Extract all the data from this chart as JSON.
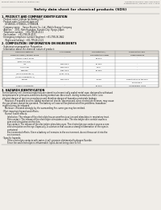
{
  "bg_color": "#f0ede8",
  "header_top_left": "Product Name: Lithium Ion Battery Cell",
  "header_top_right": "Substance Number: SBN-048-00019\nEstablishment / Revision: Dec.7.2015",
  "title": "Safety data sheet for chemical products (SDS)",
  "section1_title": "1. PRODUCT AND COMPANY IDENTIFICATION",
  "section1_lines": [
    "· Product name: Lithium Ion Battery Cell",
    "· Product code: Cylindrical-type cell",
    "    GY18650U, GY18650L, GY18650A",
    "· Company name:    Sanyo Electric Co., Ltd., Mobile Energy Company",
    "· Address:    2001, Kamimunakan, Sumoto-City, Hyogo, Japan",
    "· Telephone number:    +81-799-26-4111",
    "· Fax number:   +81-799-26-4121",
    "· Emergency telephone number (daytime): +81-799-26-2662",
    "    (Night and holiday): +81-799-26-2121"
  ],
  "section2_title": "2. COMPOSITION / INFORMATION ON INGREDIENTS",
  "section2_sub": "· Substance or preparation: Preparation",
  "section2_sub2": "· Information about the chemical nature of product:",
  "table_headers_row1": [
    "Chemical substance",
    "CAS number",
    "Concentration /",
    "Classification and"
  ],
  "table_headers_row2": [
    "Common name / Several name",
    "",
    "Concentration range",
    "hazard labeling"
  ],
  "table_rows": [
    [
      "Lithium cobalt oxide",
      "-",
      "30-50%",
      "-"
    ],
    [
      "(LiMn-CoO(3)x)",
      "",
      "",
      ""
    ],
    [
      "Iron",
      "7439-89-6",
      "15-25%",
      "-"
    ],
    [
      "Aluminium",
      "7429-90-5",
      "2-5%",
      "-"
    ],
    [
      "Graphite",
      "7782-42-5",
      "15-25%",
      "-"
    ],
    [
      "(Kind of graphite-1)",
      "(7782-44-2)",
      "",
      ""
    ],
    [
      "(All-No of graphite-1)",
      "",
      "",
      ""
    ],
    [
      "Copper",
      "7440-50-8",
      "5-15%",
      "Sensitization of the skin"
    ],
    [
      "",
      "",
      "",
      "group No.2"
    ],
    [
      "Organic electrolyte",
      "-",
      "10-20%",
      "Inflammable liquid"
    ]
  ],
  "section3_title": "3. HAZARDS IDENTIFICATION",
  "section3_lines": [
    "For the battery cell, chemical materials are stored in a hermetically sealed metal case, designed to withstand",
    "temperatures or pressures-conditions during normal use. As a result, during normal-use, there is no",
    "physical danger of ignition or explosion and therefore danger of hazardous materials leakage.",
    "    However, if exposed to a fire, added mechanical shocks, decomposed, when electrolyte releases, may cause",
    "the gas release cannot be operated. The battery cell case will be protected of fire-problems, hazardous",
    "materials may be released.",
    "    Moreover, if heated strongly by the surrounding fire, some gas may be emitted."
  ],
  "most_imp": "· Most important hazard and effects:",
  "human_health": "    Human health effects:",
  "inhalation": "        Inhalation: The release of the electrolyte has an anesthesia action and stimulates in respiratory tract.",
  "skin_contact_lines": [
    "        Skin contact: The release of the electrolyte stimulates a skin. The electrolyte skin contact causes a",
    "        sore and stimulation on the skin."
  ],
  "eye_contact_lines": [
    "        Eye contact: The release of the electrolyte stimulates eyes. The electrolyte eye contact causes a sore",
    "        and stimulation on the eye. Especially, a substance that causes a strong inflammation of the eyes is",
    "        contained."
  ],
  "env_effects_lines": [
    "        Environmental effects: Since a battery cell remains in the environment, do not throw out it into the",
    "        environment."
  ],
  "specific_hazards": "· Specific hazards:",
  "spec_lines": [
    "        If the electrolyte contacts with water, it will generate detrimental hydrogen fluoride.",
    "        Since the seal electrolyte is inflammable liquid, do not bring close to fire."
  ],
  "footer_line": true
}
